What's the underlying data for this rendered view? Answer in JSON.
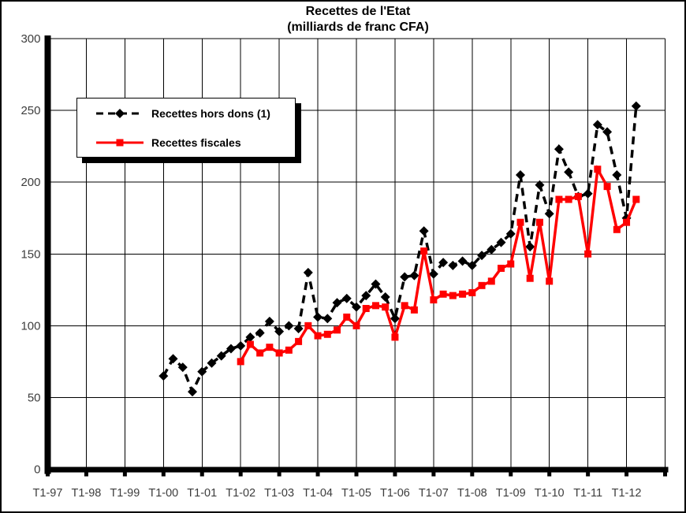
{
  "chart_data": {
    "type": "line",
    "title": "Recettes de l'Etat",
    "subtitle": "(milliards de franc CFA)",
    "ylim": [
      0,
      300
    ],
    "y_ticks": [
      0,
      50,
      100,
      150,
      200,
      250,
      300
    ],
    "x_tick_labels": [
      "T1-97",
      "T1-98",
      "T1-99",
      "T1-00",
      "T1-01",
      "T1-02",
      "T1-03",
      "T1-04",
      "T1-05",
      "T1-06",
      "T1-07",
      "T1-08",
      "T1-09",
      "T1-10",
      "T1-11",
      "T1-12"
    ],
    "x_years_span": 16,
    "grid": true,
    "legend_position": "upper-left",
    "background": "#ffffff",
    "series": [
      {
        "name": "Recettes hors dons (1)",
        "color": "#000000",
        "style": "dashed",
        "marker": "diamond",
        "start_quarter": "T1-00",
        "start_offset_quarters": 12,
        "values": [
          65,
          77,
          71,
          54,
          68,
          74,
          79,
          84,
          86,
          92,
          95,
          103,
          96,
          100,
          98,
          137,
          106,
          105,
          116,
          119,
          113,
          121,
          129,
          120,
          105,
          134,
          135,
          166,
          136,
          144,
          142,
          145,
          142,
          149,
          153,
          158,
          164,
          205,
          155,
          198,
          178,
          223,
          207,
          190,
          192,
          240,
          235,
          205,
          175,
          253
        ]
      },
      {
        "name": "Recettes fiscales",
        "color": "#ff0000",
        "style": "solid",
        "marker": "square",
        "start_quarter": "T1-02",
        "start_offset_quarters": 20,
        "values": [
          75,
          87,
          81,
          85,
          81,
          83,
          89,
          100,
          93,
          94,
          97,
          106,
          100,
          112,
          114,
          113,
          92,
          114,
          111,
          152,
          118,
          122,
          121,
          122,
          123,
          128,
          131,
          140,
          143,
          172,
          133,
          172,
          131,
          188,
          188,
          190,
          150,
          209,
          197,
          167,
          172,
          188
        ]
      }
    ]
  }
}
